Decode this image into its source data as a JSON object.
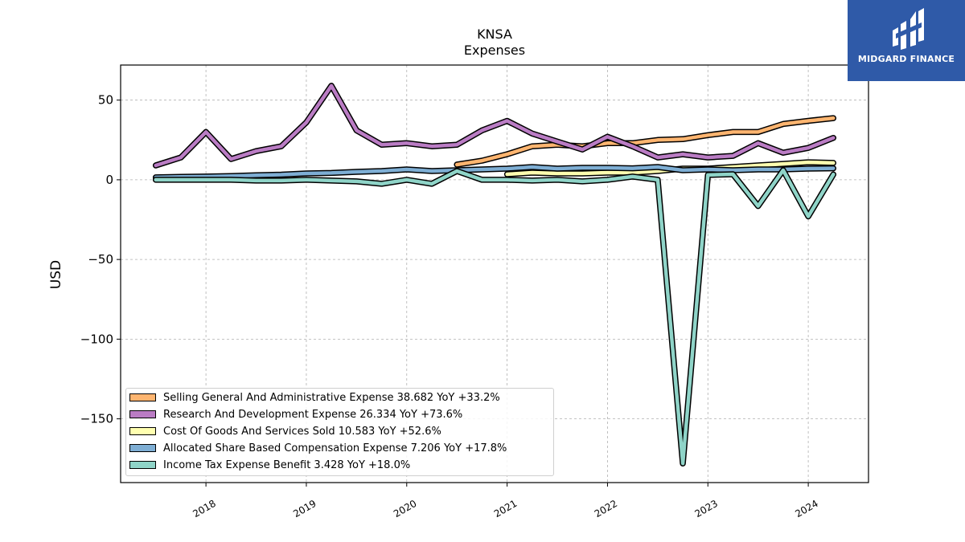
{
  "brand": {
    "name": "MIDGARD FINANCE",
    "color": "#2f5aa8"
  },
  "chart_data": {
    "type": "line",
    "title": "KNSA",
    "subtitle": "Expenses",
    "ylabel": "USD",
    "xlabel": "",
    "ylim": [
      -190,
      72
    ],
    "xlim": [
      2017.15,
      2024.6
    ],
    "yticks": [
      50,
      0,
      -50,
      -100,
      -150
    ],
    "ytick_labels": [
      "50",
      "0",
      "−50",
      "−100",
      "−150"
    ],
    "xticks": [
      2018,
      2019,
      2020,
      2021,
      2022,
      2023,
      2024
    ],
    "xtick_labels": [
      "2018",
      "2019",
      "2020",
      "2021",
      "2022",
      "2023",
      "2024"
    ],
    "grid": true,
    "legend_position": "lower-left",
    "series": [
      {
        "name": "Selling General And Administrative Expense",
        "legend": "Selling General And Administrative Expense  38.682 YoY +33.2%",
        "color": "#ffb570",
        "x": [
          2020.5,
          2020.75,
          2021.0,
          2021.25,
          2021.5,
          2021.75,
          2022.0,
          2022.25,
          2022.5,
          2022.75,
          2023.0,
          2023.25,
          2023.5,
          2023.75,
          2024.0,
          2024.25
        ],
        "y": [
          9.5,
          12,
          16,
          21,
          22,
          21,
          23,
          23,
          25,
          25.5,
          28,
          30,
          30,
          35,
          37,
          38.7
        ]
      },
      {
        "name": "Research And Development Expense",
        "legend": "Research And Development Expense  26.334 YoY +73.6%",
        "color": "#ba7cc4",
        "x": [
          2017.5,
          2017.75,
          2018.0,
          2018.25,
          2018.5,
          2018.75,
          2019.0,
          2019.25,
          2019.5,
          2019.75,
          2020.0,
          2020.25,
          2020.5,
          2020.75,
          2021.0,
          2021.25,
          2021.5,
          2021.75,
          2022.0,
          2022.25,
          2022.5,
          2022.75,
          2023.0,
          2023.25,
          2023.5,
          2023.75,
          2024.0,
          2024.25
        ],
        "y": [
          9,
          14,
          30,
          13,
          18,
          21,
          36,
          59,
          31,
          22,
          23,
          21,
          22,
          31,
          37,
          29,
          24,
          19,
          27,
          21,
          14,
          16,
          14,
          15,
          23,
          17,
          20,
          26.3
        ]
      },
      {
        "name": "Cost Of Goods And Services Sold",
        "legend": "Cost Of Goods And Services Sold  10.583 YoY +52.6%",
        "color": "#ffffb0",
        "x": [
          2021.0,
          2021.25,
          2021.5,
          2021.75,
          2022.0,
          2022.25,
          2022.5,
          2022.75,
          2023.0,
          2023.25,
          2023.5,
          2023.75,
          2024.0,
          2024.25
        ],
        "y": [
          3.5,
          4.5,
          4,
          4,
          4.5,
          4.5,
          5.5,
          7,
          7,
          8,
          9,
          10,
          11,
          10.6
        ]
      },
      {
        "name": "Allocated Share Based Compensation Expense",
        "legend": "Allocated Share Based Compensation Expense  7.206 YoY +17.8%",
        "color": "#7eaed4",
        "x": [
          2017.5,
          2017.75,
          2018.0,
          2018.25,
          2018.5,
          2018.75,
          2019.0,
          2019.25,
          2019.5,
          2019.75,
          2020.0,
          2020.25,
          2020.5,
          2020.75,
          2021.0,
          2021.25,
          2021.5,
          2021.75,
          2022.0,
          2022.25,
          2022.5,
          2022.75,
          2023.0,
          2023.25,
          2023.5,
          2023.75,
          2024.0,
          2024.25
        ],
        "y": [
          1.5,
          1.8,
          2,
          2.3,
          2.8,
          3.2,
          4,
          4.3,
          5,
          5.5,
          6.5,
          5.5,
          6,
          6.5,
          7,
          8,
          7,
          7.5,
          7.5,
          7.2,
          8,
          6,
          6.5,
          6,
          6.5,
          6.5,
          7,
          7.2
        ]
      },
      {
        "name": "Income Tax Expense Benefit",
        "legend": "Income Tax Expense Benefit  3.428 YoY +18.0%",
        "color": "#8fd4c8",
        "x": [
          2017.5,
          2017.75,
          2018.0,
          2018.25,
          2018.5,
          2018.75,
          2019.0,
          2019.25,
          2019.5,
          2019.75,
          2020.0,
          2020.25,
          2020.5,
          2020.75,
          2021.0,
          2021.25,
          2021.5,
          2021.75,
          2022.0,
          2022.25,
          2022.5,
          2022.75,
          2023.0,
          2023.25,
          2023.5,
          2023.75,
          2024.0,
          2024.25
        ],
        "y": [
          0,
          0,
          0,
          0,
          -0.5,
          -0.5,
          0,
          -0.5,
          -1,
          -2.5,
          0,
          -2.5,
          5.5,
          0,
          0,
          -0.5,
          0,
          -1,
          0,
          2,
          0,
          -178,
          3,
          3.5,
          -16.5,
          6,
          -23,
          3.4
        ]
      }
    ]
  }
}
